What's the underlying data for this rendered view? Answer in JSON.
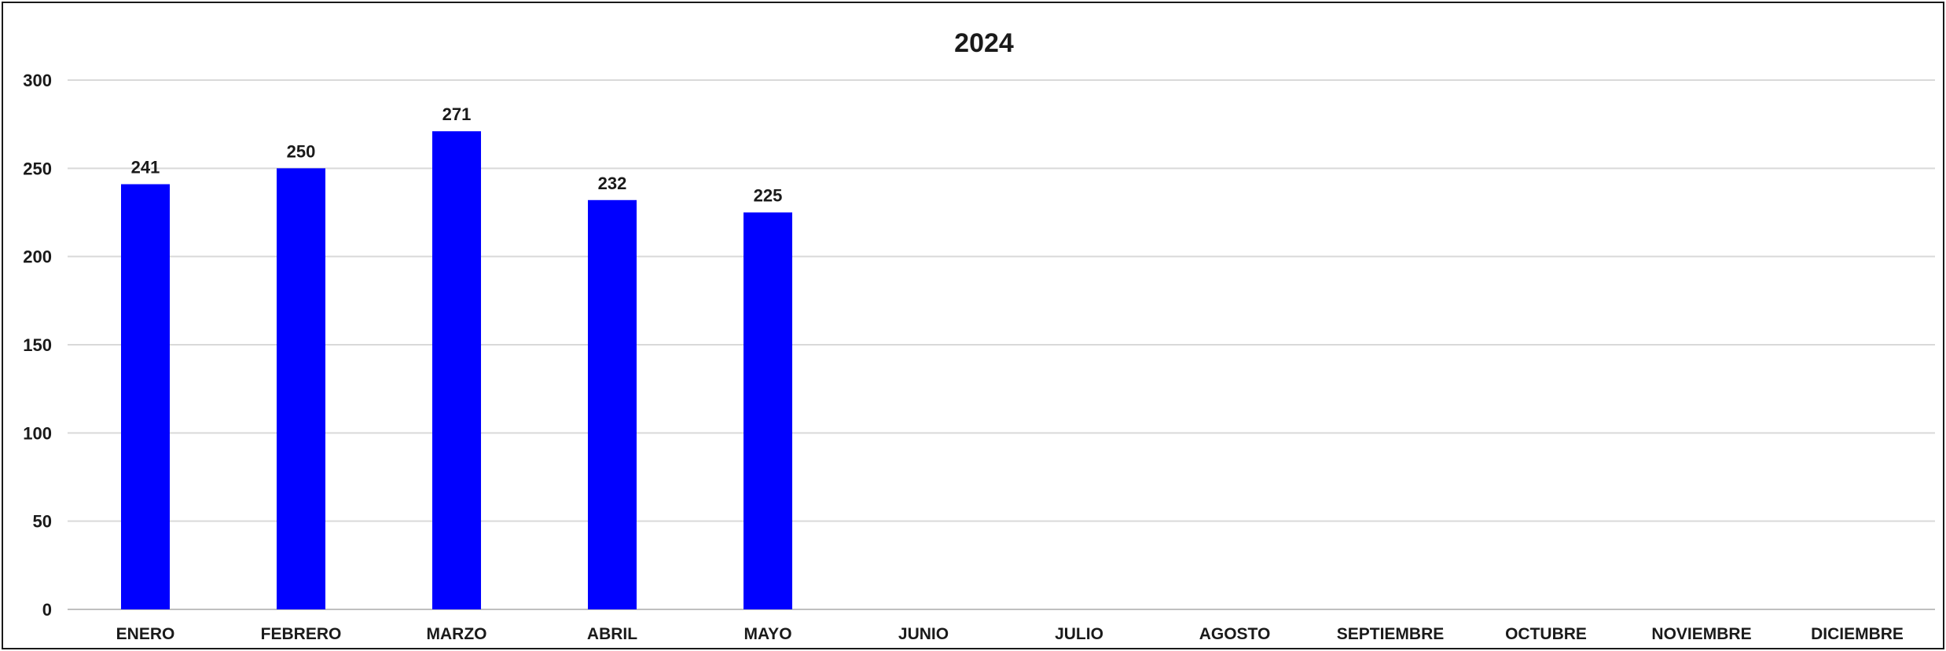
{
  "chart_data": {
    "type": "bar",
    "title": "2024",
    "xlabel": "",
    "ylabel": "",
    "categories": [
      "ENERO",
      "FEBRERO",
      "MARZO",
      "ABRIL",
      "MAYO",
      "JUNIO",
      "JULIO",
      "AGOSTO",
      "SEPTIEMBRE",
      "OCTUBRE",
      "NOVIEMBRE",
      "DICIEMBRE"
    ],
    "values": [
      241,
      250,
      271,
      232,
      225,
      null,
      null,
      null,
      null,
      null,
      null,
      null
    ],
    "ylim": [
      0,
      300
    ],
    "yticks": [
      0,
      50,
      100,
      150,
      200,
      250,
      300
    ],
    "grid": true,
    "legend": "none",
    "bar_color": "#0000FF",
    "grid_color": "#D9D9D9"
  }
}
